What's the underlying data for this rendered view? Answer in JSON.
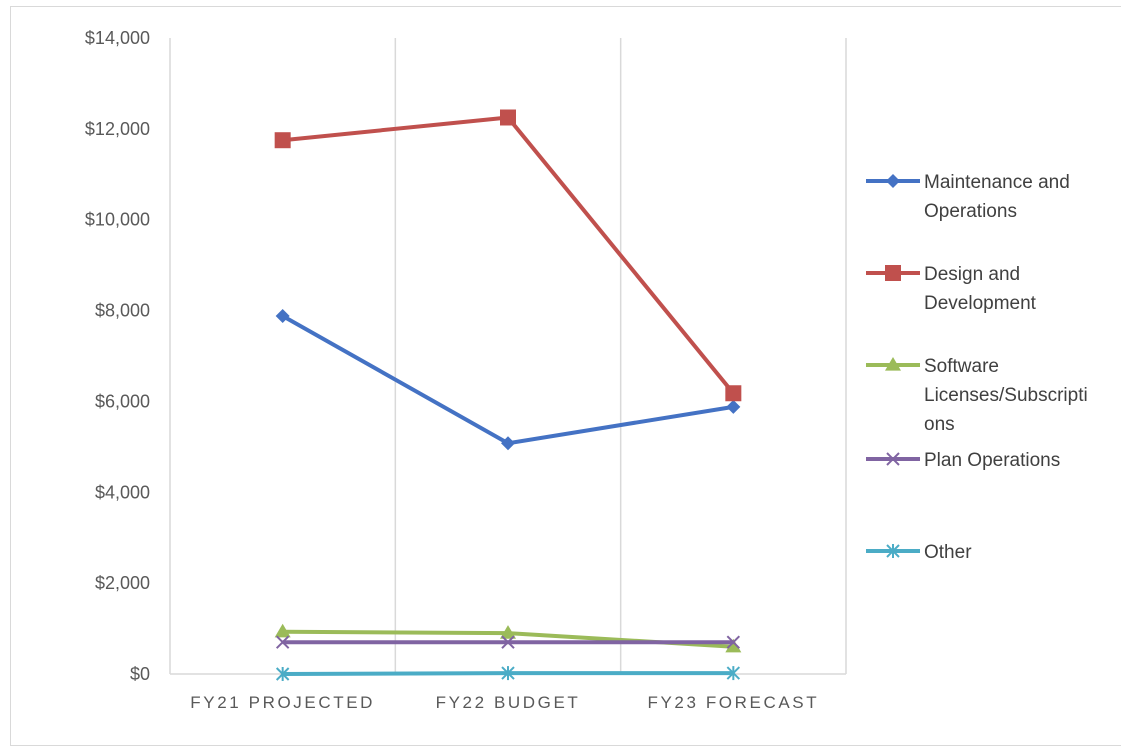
{
  "chart_data": {
    "type": "line",
    "title": "",
    "xlabel": "",
    "ylabel": "",
    "categories": [
      "FY21 PROJECTED",
      "FY22 BUDGET",
      "FY23 FORECAST"
    ],
    "ylim": [
      0,
      14000
    ],
    "yticks": [
      0,
      2000,
      4000,
      6000,
      8000,
      10000,
      12000,
      14000
    ],
    "ytick_labels": [
      "$0",
      "$2,000",
      "$4,000",
      "$6,000",
      "$8,000",
      "$10,000",
      "$12,000",
      "$14,000"
    ],
    "grid": "vertical",
    "legend_position": "right",
    "series": [
      {
        "name": "Maintenance and Operations",
        "legend_lines": [
          "Maintenance and",
          "Operations"
        ],
        "values": [
          7880,
          5080,
          5880
        ],
        "color": "#4472c4",
        "marker": "diamond"
      },
      {
        "name": "Design and Development",
        "legend_lines": [
          "Design and",
          "Development"
        ],
        "values": [
          11750,
          12250,
          6180
        ],
        "color": "#c0504d",
        "marker": "square"
      },
      {
        "name": "Software Licenses/Subscriptions",
        "legend_lines": [
          "Software",
          "Licenses/Subscripti",
          "ons"
        ],
        "values": [
          930,
          900,
          600
        ],
        "color": "#9bbb59",
        "marker": "triangle"
      },
      {
        "name": "Plan Operations",
        "legend_lines": [
          "Plan Operations"
        ],
        "values": [
          700,
          700,
          700
        ],
        "color": "#8064a2",
        "marker": "x"
      },
      {
        "name": "Other",
        "legend_lines": [
          "Other"
        ],
        "values": [
          0,
          20,
          20
        ],
        "color": "#4bacc6",
        "marker": "star"
      }
    ]
  }
}
